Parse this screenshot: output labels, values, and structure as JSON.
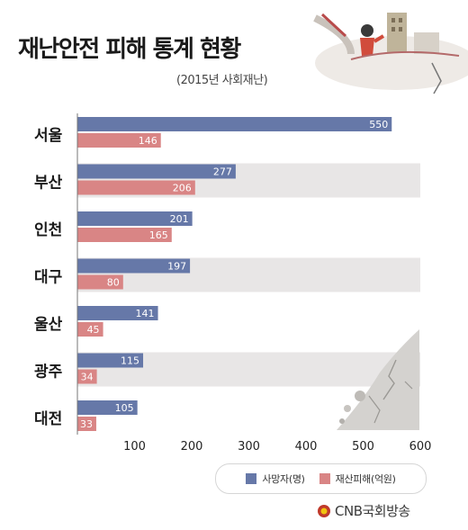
{
  "header": {
    "title": "재난안전 피해 통계 현황",
    "subtitle": "(2015년 사회재난)"
  },
  "legend": {
    "series1": "사망자(명)",
    "series2": "재산피해(억원)"
  },
  "brand": {
    "name": "CNB국회방송"
  },
  "colors": {
    "series1": "#6678a8",
    "series2": "#d98585",
    "stripe": "#e8e6e6",
    "axis": "#777777"
  },
  "chart_data": {
    "type": "bar",
    "orientation": "horizontal",
    "categories": [
      "서울",
      "부산",
      "인천",
      "대구",
      "울산",
      "광주",
      "대전"
    ],
    "series": [
      {
        "name": "사망자(명)",
        "values": [
          550,
          277,
          201,
          197,
          141,
          115,
          105
        ]
      },
      {
        "name": "재산피해(억원)",
        "values": [
          146,
          206,
          165,
          80,
          45,
          34,
          33
        ]
      }
    ],
    "xticks": [
      100,
      200,
      300,
      400,
      500,
      600
    ],
    "xlim": [
      0,
      600
    ],
    "legend_position": "bottom-right"
  }
}
